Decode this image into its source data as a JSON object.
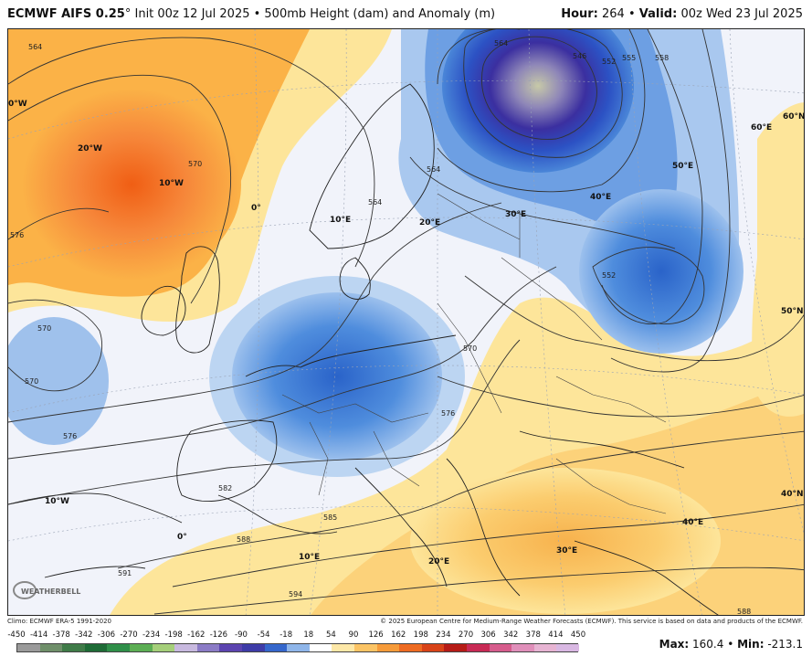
{
  "header": {
    "model": "ECMWF AIFS 0.25",
    "degree": "°",
    "init": " Init 00z 12 Jul 2025 • 500mb Height (dam) and Anomaly (m)",
    "hour_label": "Hour:",
    "hour_value": " 264 • ",
    "valid_label": "Valid:",
    "valid_value": " 00z Wed 23 Jul 2025"
  },
  "map": {
    "lon_labels": [
      "0°W",
      "20°W",
      "10°W",
      "0°",
      "10°E",
      "20°E",
      "30°E",
      "40°E",
      "50°E",
      "60°E",
      "60°N",
      "50°N",
      "10°W",
      "0°",
      "10°E",
      "20°E",
      "30°E",
      "40°E",
      "40°N"
    ],
    "contour_labels": [
      "564",
      "570",
      "576",
      "570",
      "564",
      "570",
      "576",
      "564",
      "546",
      "552",
      "558",
      "552",
      "555",
      "564",
      "570",
      "576",
      "582",
      "585",
      "588",
      "591",
      "594",
      "588"
    ],
    "anomaly_colors": {
      "strong_positive": "#f26a1b",
      "positive": "#fbb040",
      "weak_positive": "#fde59a",
      "neutral": "#f1f3fa",
      "weak_negative": "#a9c8ef",
      "negative": "#3d7fd8",
      "strong_negative": "#3b2fa0",
      "extreme_negative": "#c7c9a8"
    }
  },
  "footer": {
    "climo": "Climo: ECMWF ERA-5 1991-2020",
    "copyright": "© 2025 European Centre for Medium-Range Weather Forecasts (ECMWF). This service is based on data and products of the ECMWF."
  },
  "colorbar": {
    "ticks": [
      "-450",
      "-414",
      "-378",
      "-342",
      "-306",
      "-270",
      "-234",
      "-198",
      "-162",
      "-126",
      "-90",
      "-54",
      "-18",
      "18",
      "54",
      "90",
      "126",
      "162",
      "198",
      "234",
      "270",
      "306",
      "342",
      "378",
      "414",
      "450"
    ],
    "colors": [
      "#9a9a9a",
      "#6f8f6a",
      "#3f7b48",
      "#1e6b36",
      "#2f8f49",
      "#5cae54",
      "#a5cf7a",
      "#c8b9df",
      "#8b7bc6",
      "#5c44b0",
      "#3e3ca8",
      "#3567cc",
      "#8fb6ea",
      "#ffffff",
      "#fde8a8",
      "#fbc465",
      "#f69b3a",
      "#ee6b22",
      "#d84318",
      "#b61c17",
      "#c82a55",
      "#d65c8c",
      "#e08fba",
      "#e7b4d3",
      "#d9b8e3"
    ]
  },
  "stats": {
    "max_label": "Max:",
    "max_value": " 160.4",
    "sep": " • ",
    "min_label": "Min:",
    "min_value": " -213.1"
  },
  "logo": {
    "text": "WEATHERBELL"
  }
}
